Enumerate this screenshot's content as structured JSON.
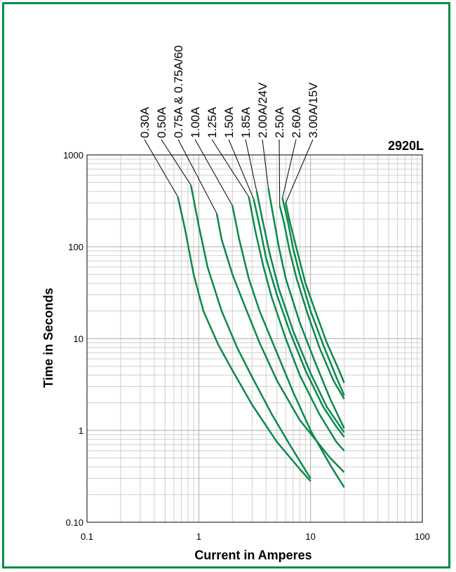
{
  "colors": {
    "frame": "#0a8a4a",
    "series": "#0a8a4a",
    "grid": "#cfcfcf"
  },
  "chart_data": {
    "type": "line",
    "title": "2920L",
    "xlabel": "Current in Amperes",
    "ylabel": "Time in Seconds",
    "xscale": "log",
    "yscale": "log",
    "xlim": [
      0.1,
      100
    ],
    "ylim": [
      0.1,
      1000
    ],
    "grid": true,
    "x_tick_labels": [
      "0.1",
      "1",
      "10",
      "100"
    ],
    "y_tick_labels": [
      "0.10",
      "1",
      "10",
      "100",
      "1000"
    ],
    "series": [
      {
        "name": "0.30A",
        "x": [
          0.65,
          0.75,
          0.9,
          1.1,
          1.5,
          2.0,
          3.0,
          5.0,
          8.0,
          10.0
        ],
        "y": [
          350,
          160,
          50,
          20,
          8.5,
          4.5,
          1.9,
          0.75,
          0.38,
          0.28
        ]
      },
      {
        "name": "0.50A",
        "x": [
          0.85,
          1.0,
          1.2,
          1.6,
          2.2,
          3.0,
          4.5,
          6.5,
          10.0
        ],
        "y": [
          470,
          170,
          60,
          20,
          8.0,
          3.8,
          1.5,
          0.7,
          0.3
        ]
      },
      {
        "name": "0.75A & 0.75A/60",
        "x": [
          1.45,
          1.6,
          2.0,
          2.5,
          3.5,
          5.0,
          8.0,
          15.0,
          20.0
        ],
        "y": [
          230,
          120,
          50,
          25,
          9.0,
          3.5,
          1.3,
          0.5,
          0.35
        ]
      },
      {
        "name": "1.00A",
        "x": [
          2.0,
          2.3,
          2.8,
          3.5,
          5.0,
          7.0,
          10.0,
          15.0,
          20.0
        ],
        "y": [
          280,
          120,
          45,
          20,
          7.0,
          2.6,
          1.0,
          0.42,
          0.24
        ]
      },
      {
        "name": "1.25A",
        "x": [
          2.8,
          3.2,
          3.8,
          4.5,
          6.0,
          8.0,
          12.0,
          17.0,
          20.0
        ],
        "y": [
          350,
          150,
          60,
          28,
          10.0,
          4.0,
          1.5,
          0.75,
          0.6
        ]
      },
      {
        "name": "1.50A",
        "x": [
          3.1,
          3.5,
          4.0,
          5.0,
          6.5,
          9.0,
          13.0,
          17.0,
          20.0
        ],
        "y": [
          330,
          170,
          75,
          30,
          12.0,
          4.5,
          1.8,
          1.1,
          0.85
        ]
      },
      {
        "name": "1.85A",
        "x": [
          3.3,
          3.7,
          4.3,
          5.2,
          7.0,
          10.0,
          14.0,
          20.0
        ],
        "y": [
          400,
          200,
          85,
          35,
          12.0,
          4.2,
          1.8,
          0.95
        ]
      },
      {
        "name": "2.00A/24V",
        "x": [
          4.2,
          4.6,
          5.2,
          6.0,
          8.0,
          11.0,
          15.0,
          20.0
        ],
        "y": [
          430,
          230,
          100,
          45,
          15.0,
          5.5,
          2.2,
          1.05
        ]
      },
      {
        "name": "2.50A",
        "x": [
          5.3,
          5.8,
          6.5,
          7.5,
          9.5,
          12.0,
          16.0,
          20.0
        ],
        "y": [
          280,
          180,
          90,
          45,
          18.0,
          8.0,
          3.5,
          2.2
        ]
      },
      {
        "name": "2.60A",
        "x": [
          5.6,
          6.2,
          7.0,
          8.0,
          10.0,
          13.0,
          17.0,
          20.0
        ],
        "y": [
          340,
          200,
          95,
          50,
          20.0,
          8.5,
          3.8,
          2.4
        ]
      },
      {
        "name": "3.00A/15V",
        "x": [
          6.0,
          6.5,
          7.5,
          9.0,
          11.0,
          14.0,
          18.0,
          20.0
        ],
        "y": [
          300,
          190,
          95,
          40,
          20.0,
          9.0,
          4.5,
          3.3
        ]
      }
    ]
  }
}
